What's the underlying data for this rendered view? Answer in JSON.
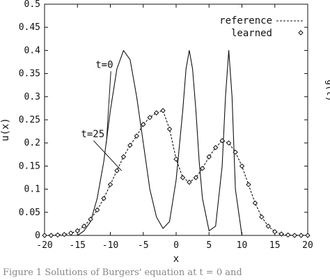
{
  "chart_data": {
    "type": "line",
    "title": "",
    "xlabel": "x",
    "ylabel": "u(x)",
    "right_label": "g(t)",
    "xlim": [
      -20,
      20
    ],
    "ylim": [
      0,
      0.5
    ],
    "xticks": [
      -20,
      -15,
      -10,
      -5,
      0,
      5,
      10,
      15,
      20
    ],
    "yticks": [
      0,
      0.05,
      0.1,
      0.15,
      0.2,
      0.25,
      0.3,
      0.35,
      0.4,
      0.45,
      0.5
    ],
    "ytick_labels": [
      "0",
      "0.05",
      "0.1",
      "0.15",
      "0.2",
      "0.25",
      "0.3",
      "0.35",
      "0.4",
      "0.45",
      "0.5"
    ],
    "legend": {
      "position": "top-right",
      "entries": [
        "reference",
        "learned"
      ]
    },
    "annotations": [
      {
        "text": "t=0",
        "x": -9.5,
        "y": 0.37,
        "target_x": -10.6,
        "target_y": 0.2
      },
      {
        "text": "t=25",
        "x": -11.7,
        "y": 0.22,
        "target_x": -8.3,
        "target_y": 0.14
      }
    ],
    "series": [
      {
        "style": "solid",
        "x": [
          -20,
          -15,
          -14,
          -13,
          -12,
          -11,
          -10,
          -9,
          -8,
          -7,
          -6,
          -5,
          -4,
          -3,
          -2,
          -1,
          0,
          1,
          1.5,
          2,
          2.5,
          3,
          3.5,
          4,
          5,
          6,
          7,
          7.5,
          8,
          8.5,
          9,
          10,
          20
        ],
        "y": [
          0,
          0,
          0.01,
          0.03,
          0.08,
          0.16,
          0.27,
          0.36,
          0.4,
          0.38,
          0.3,
          0.2,
          0.1,
          0.04,
          0.015,
          0.03,
          0.12,
          0.27,
          0.36,
          0.4,
          0.36,
          0.27,
          0.16,
          0.08,
          0.01,
          0.02,
          0.15,
          0.3,
          0.4,
          0.3,
          0.1,
          0,
          0
        ]
      },
      {
        "style": "dashed",
        "x": [
          -20,
          -17,
          -16,
          -15,
          -14,
          -13,
          -12,
          -11,
          -10,
          -9,
          -8,
          -7,
          -6,
          -5,
          -4,
          -3,
          -2,
          -1,
          0,
          1,
          2,
          3,
          4,
          5,
          6,
          7,
          8,
          9,
          10,
          11,
          12,
          13,
          14,
          15,
          16,
          17,
          20
        ],
        "y": [
          0,
          0.002,
          0.005,
          0.01,
          0.02,
          0.035,
          0.055,
          0.08,
          0.11,
          0.14,
          0.17,
          0.195,
          0.215,
          0.24,
          0.255,
          0.265,
          0.27,
          0.23,
          0.165,
          0.125,
          0.115,
          0.125,
          0.145,
          0.17,
          0.19,
          0.205,
          0.2,
          0.18,
          0.15,
          0.11,
          0.07,
          0.04,
          0.02,
          0.008,
          0.003,
          0.001,
          0
        ]
      },
      {
        "style": "markers",
        "marker": "diamond",
        "x": [
          -20,
          -19,
          -18,
          -17,
          -16,
          -15,
          -14,
          -13,
          -12,
          -11,
          -10,
          -9,
          -8,
          -7,
          -6,
          -5,
          -4,
          -3,
          -2,
          -1,
          0,
          1,
          2,
          3,
          4,
          5,
          6,
          7,
          8,
          9,
          10,
          11,
          12,
          13,
          14,
          15,
          16,
          17,
          18,
          19,
          20
        ],
        "y": [
          0,
          0,
          0.001,
          0.002,
          0.005,
          0.01,
          0.02,
          0.035,
          0.055,
          0.08,
          0.11,
          0.14,
          0.17,
          0.195,
          0.215,
          0.24,
          0.255,
          0.265,
          0.27,
          0.23,
          0.165,
          0.125,
          0.115,
          0.125,
          0.145,
          0.17,
          0.19,
          0.205,
          0.2,
          0.18,
          0.15,
          0.11,
          0.07,
          0.04,
          0.02,
          0.008,
          0.003,
          0.001,
          0,
          0,
          0
        ]
      }
    ]
  },
  "caption": "Figure 1    Solutions of Burgers' equation at t = 0 and"
}
